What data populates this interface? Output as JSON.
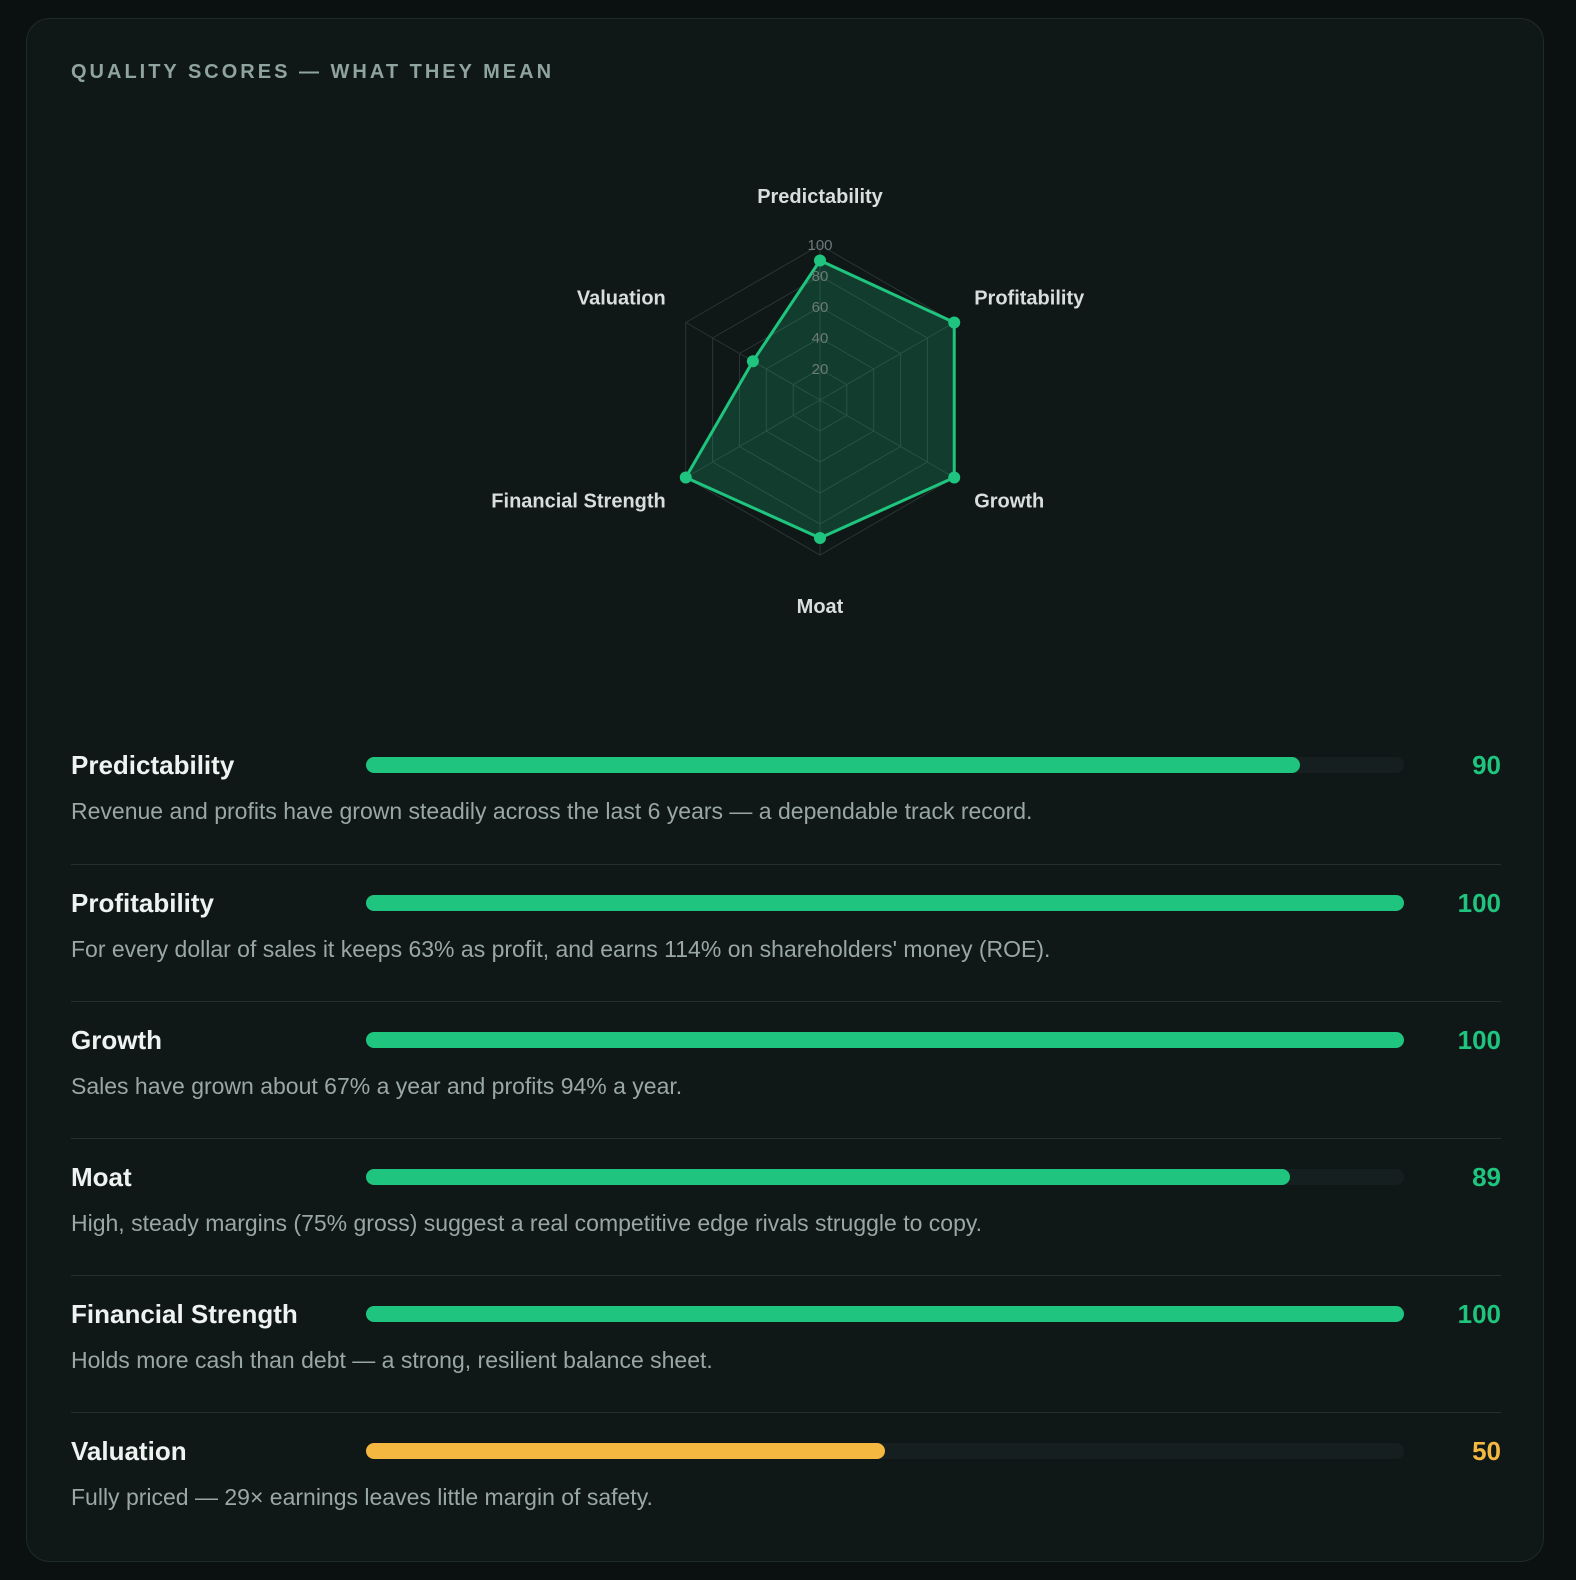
{
  "header": {
    "title": "QUALITY SCORES — WHAT THEY MEAN"
  },
  "colors": {
    "good": "#1fc47e",
    "warn": "#f4b740",
    "track": "#161f1f"
  },
  "chart_data": {
    "type": "radar",
    "axes": [
      "Predictability",
      "Profitability",
      "Growth",
      "Moat",
      "Financial Strength",
      "Valuation"
    ],
    "values": [
      90,
      100,
      100,
      89,
      100,
      50
    ],
    "range": [
      0,
      100
    ],
    "ticks": [
      20,
      40,
      60,
      80,
      100
    ],
    "grid": true
  },
  "scores": [
    {
      "name": "Predictability",
      "value": 90,
      "value_label": "90",
      "color": "#1fc47e",
      "description": "Revenue and profits have grown steadily across the last 6 years — a dependable track record."
    },
    {
      "name": "Profitability",
      "value": 100,
      "value_label": "100",
      "color": "#1fc47e",
      "description": "For every dollar of sales it keeps 63% as profit, and earns 114% on shareholders' money (ROE)."
    },
    {
      "name": "Growth",
      "value": 100,
      "value_label": "100",
      "color": "#1fc47e",
      "description": "Sales have grown about 67% a year and profits 94% a year."
    },
    {
      "name": "Moat",
      "value": 89,
      "value_label": "89",
      "color": "#1fc47e",
      "description": "High, steady margins (75% gross) suggest a real competitive edge rivals struggle to copy."
    },
    {
      "name": "Financial Strength",
      "value": 100,
      "value_label": "100",
      "color": "#1fc47e",
      "description": "Holds more cash than debt — a strong, resilient balance sheet."
    },
    {
      "name": "Valuation",
      "value": 50,
      "value_label": "50",
      "color": "#f4b740",
      "description": "Fully priced — 29× earnings leaves little margin of safety."
    }
  ]
}
